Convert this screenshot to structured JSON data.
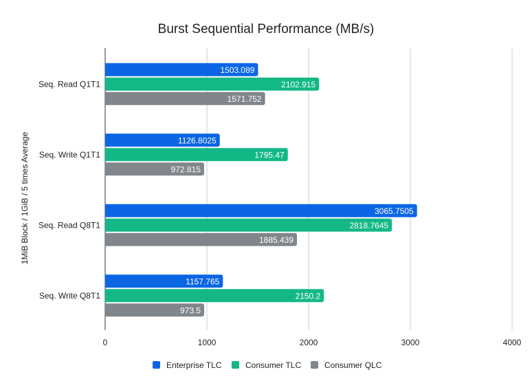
{
  "chart_data": {
    "type": "bar",
    "orientation": "horizontal",
    "title": "Burst Sequential Performance (MB/s)",
    "xlabel": "",
    "ylabel": "1MiB Block / 1GiB / 5 times Average",
    "categories": [
      "Seq. Read Q1T1",
      "Seq. Write Q1T1",
      "Seq. Read Q8T1",
      "Seq. Write Q8T1"
    ],
    "series": [
      {
        "name": "Enterprise TLC",
        "color": "#0b66e4",
        "values": [
          1503.089,
          1126.8025,
          3065.7505,
          1157.765
        ]
      },
      {
        "name": "Consumer TLC",
        "color": "#13b886",
        "values": [
          2102.915,
          1795.47,
          2818.7645,
          2150.2
        ]
      },
      {
        "name": "Consumer QLC",
        "color": "#80868b",
        "values": [
          1571.752,
          972.815,
          1885.439,
          973.5
        ]
      }
    ],
    "xlim": [
      0,
      4000
    ],
    "xticks": [
      "0",
      "1000",
      "2000",
      "3000",
      "4000"
    ],
    "grid": true,
    "data_labels": true,
    "legend_position": "bottom"
  }
}
